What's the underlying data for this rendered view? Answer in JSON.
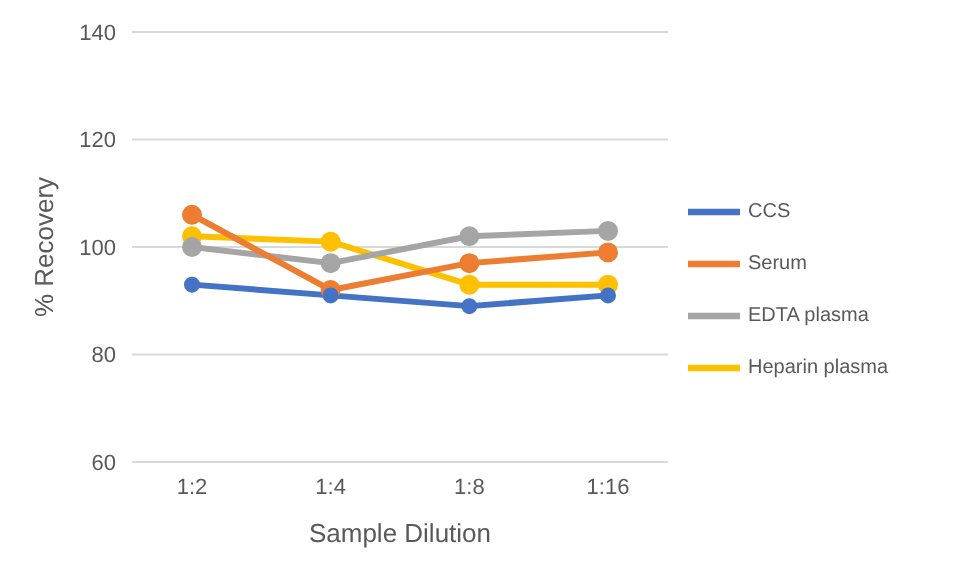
{
  "chart_data": {
    "type": "line",
    "xlabel": "Sample Dilution",
    "ylabel": "% Recovery",
    "categories": [
      "1:2",
      "1:4",
      "1:8",
      "1:16"
    ],
    "series": [
      {
        "name": "CCS",
        "color": "#4472c4",
        "values": [
          93,
          91,
          89,
          91
        ]
      },
      {
        "name": "Serum",
        "color": "#ed7d31",
        "values": [
          106,
          92,
          97,
          99
        ]
      },
      {
        "name": "EDTA plasma",
        "color": "#a5a5a5",
        "values": [
          100,
          97,
          102,
          103
        ]
      },
      {
        "name": "Heparin plasma",
        "color": "#ffc000",
        "values": [
          102,
          101,
          93,
          93
        ]
      }
    ],
    "ylim": [
      60,
      140
    ],
    "yticks": [
      60,
      80,
      100,
      120,
      140
    ],
    "grid": "y",
    "legend": "right",
    "marker": "circle",
    "line_style": "solid"
  }
}
